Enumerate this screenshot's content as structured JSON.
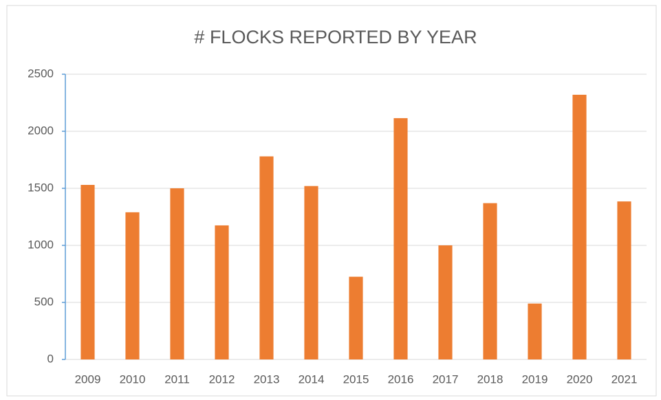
{
  "chart_data": {
    "type": "bar",
    "title": "# FLOCKS REPORTED BY YEAR",
    "categories": [
      "2009",
      "2010",
      "2011",
      "2012",
      "2013",
      "2014",
      "2015",
      "2016",
      "2017",
      "2018",
      "2019",
      "2020",
      "2021"
    ],
    "values": [
      1530,
      1290,
      1500,
      1175,
      1780,
      1520,
      725,
      2115,
      1000,
      1370,
      490,
      2320,
      1385
    ],
    "color": "#ed7d31",
    "ylim": [
      0,
      2500
    ],
    "yticks": [
      0,
      500,
      1000,
      1500,
      2000,
      2500
    ],
    "grid": true
  }
}
